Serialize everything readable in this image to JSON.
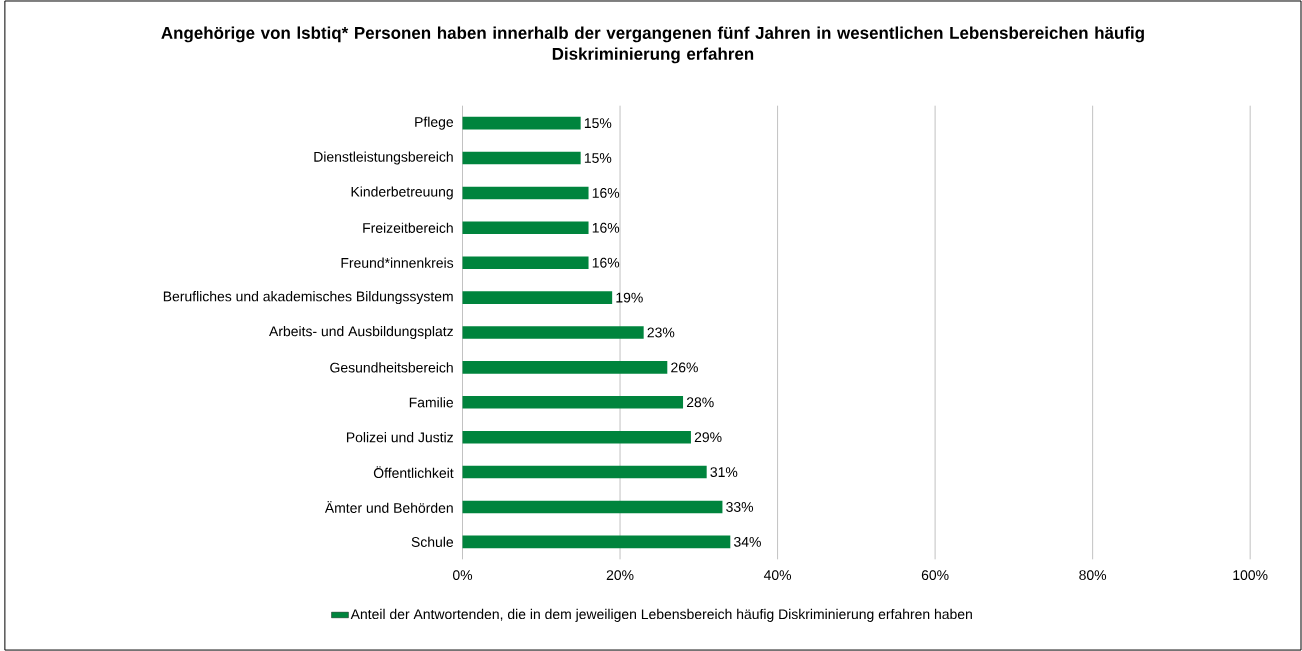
{
  "chart_data": {
    "type": "bar",
    "orientation": "horizontal",
    "title": "Angehörige von lsbtiq* Personen haben innerhalb der vergangenen fünf Jahren in wesentlichen Lebensbereichen häufig Diskriminierung erfahren",
    "categories": [
      "Pflege",
      "Dienstleistungsbereich",
      "Kinderbetreuung",
      "Freizeitbereich",
      "Freund*innenkreis",
      "Berufliches und akademisches Bildungssystem",
      "Arbeits- und Ausbildungsplatz",
      "Gesundheitsbereich",
      "Familie",
      "Polizei und Justiz",
      "Öffentlichkeit",
      "Ämter und Behörden",
      "Schule"
    ],
    "series": [
      {
        "name": "Anteil der Antwortenden, die in dem jeweiligen Lebensbereich häufig Diskriminierung erfahren haben",
        "color": "#00843d",
        "values": [
          15,
          15,
          16,
          16,
          16,
          19,
          23,
          26,
          28,
          29,
          31,
          33,
          34
        ],
        "value_labels": [
          "15%",
          "15%",
          "16%",
          "16%",
          "16%",
          "19%",
          "23%",
          "26%",
          "28%",
          "29%",
          "31%",
          "33%",
          "34%"
        ]
      }
    ],
    "xlim": [
      0,
      100
    ],
    "xticks": [
      {
        "value": 0,
        "label": "0%"
      },
      {
        "value": 20,
        "label": "20%"
      },
      {
        "value": 40,
        "label": "40%"
      },
      {
        "value": 60,
        "label": "60%"
      },
      {
        "value": 80,
        "label": "80%"
      },
      {
        "value": 100,
        "label": "100%"
      }
    ],
    "grid": "x",
    "legend": "bottom"
  }
}
